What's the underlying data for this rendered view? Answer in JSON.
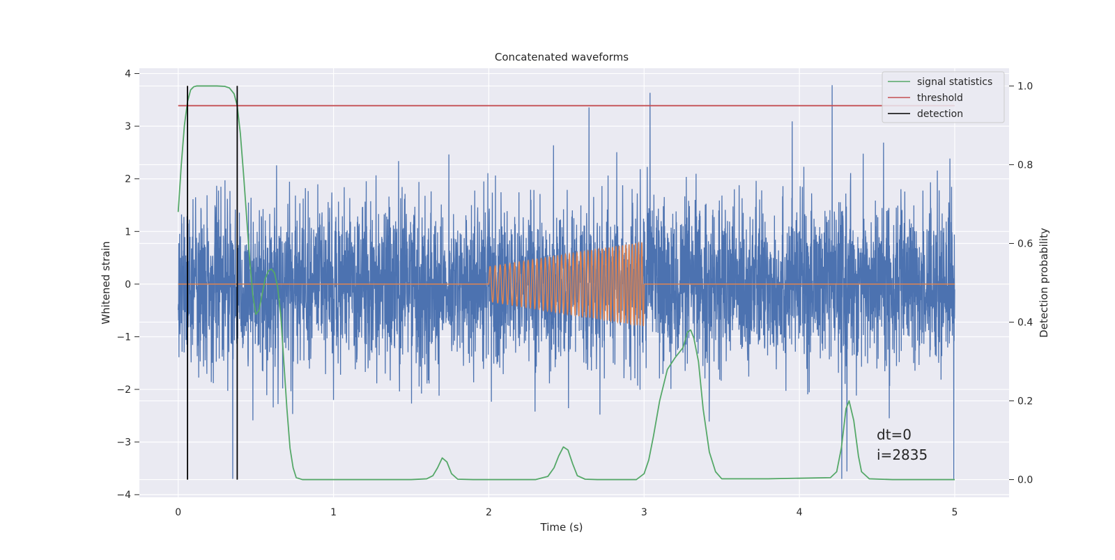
{
  "chart_data": {
    "type": "line",
    "title": "Concatenated waveforms",
    "xlabel": "Time (s)",
    "ylabel": "Whitened strain",
    "y2label": "Detection probability",
    "xlim": [
      -0.25,
      5.35
    ],
    "ylim": [
      -4.05,
      4.1
    ],
    "y2lim": [
      -0.045,
      1.045
    ],
    "xticks": [
      "0",
      "1",
      "2",
      "3",
      "4",
      "5"
    ],
    "yticks": [
      "4",
      "3",
      "2",
      "1",
      "0",
      "−1",
      "−2",
      "−3",
      "−4"
    ],
    "y2ticks": [
      "1.0",
      "0.8",
      "0.6",
      "0.4",
      "0.2",
      "0.0"
    ],
    "grid": true,
    "legend_position": "top-right",
    "legend": [
      "signal statistics",
      "threshold",
      "detection"
    ],
    "annotations": [
      "dt=0",
      "i=2835"
    ],
    "series": [
      {
        "name": "",
        "axis": "left",
        "kind": "noise",
        "color": "#4c72b0",
        "x_range": [
          0,
          5
        ],
        "typical_amplitude": 0.75,
        "max": 3.78,
        "min": -3.7
      },
      {
        "name": "",
        "axis": "left",
        "kind": "chirp",
        "color": "#dd8452",
        "x_range": [
          0,
          5
        ],
        "active_range": [
          2,
          3
        ],
        "amplitude_start": 0.33,
        "amplitude_end": 0.8,
        "freq_start_hz": 30,
        "freq_end_hz": 50
      },
      {
        "name": "signal statistics",
        "axis": "right",
        "color": "#55a868",
        "x": [
          0.0,
          0.02,
          0.04,
          0.06,
          0.08,
          0.1,
          0.12,
          0.15,
          0.2,
          0.25,
          0.3,
          0.33,
          0.36,
          0.38,
          0.4,
          0.42,
          0.44,
          0.46,
          0.48,
          0.5,
          0.52,
          0.54,
          0.56,
          0.58,
          0.6,
          0.62,
          0.64,
          0.66,
          0.68,
          0.7,
          0.72,
          0.74,
          0.76,
          0.8,
          1.0,
          1.5,
          1.6,
          1.64,
          1.67,
          1.7,
          1.73,
          1.76,
          1.8,
          1.9,
          2.3,
          2.38,
          2.42,
          2.45,
          2.48,
          2.51,
          2.54,
          2.57,
          2.62,
          2.7,
          2.95,
          3.0,
          3.03,
          3.06,
          3.1,
          3.15,
          3.2,
          3.25,
          3.28,
          3.3,
          3.32,
          3.35,
          3.38,
          3.42,
          3.46,
          3.5,
          3.8,
          4.2,
          4.24,
          4.27,
          4.3,
          4.32,
          4.35,
          4.38,
          4.4,
          4.45,
          4.6,
          5.0
        ],
        "values": [
          0.68,
          0.8,
          0.9,
          0.96,
          0.99,
          0.998,
          1.0,
          1.0,
          1.0,
          1.0,
          0.999,
          0.995,
          0.98,
          0.95,
          0.88,
          0.78,
          0.67,
          0.56,
          0.47,
          0.42,
          0.43,
          0.47,
          0.51,
          0.53,
          0.535,
          0.525,
          0.49,
          0.42,
          0.3,
          0.18,
          0.08,
          0.03,
          0.005,
          0.0,
          0.0,
          0.0,
          0.002,
          0.01,
          0.03,
          0.055,
          0.045,
          0.015,
          0.001,
          0.0,
          0.0,
          0.008,
          0.03,
          0.06,
          0.083,
          0.075,
          0.04,
          0.01,
          0.001,
          0.0,
          0.0,
          0.015,
          0.05,
          0.11,
          0.2,
          0.28,
          0.31,
          0.335,
          0.375,
          0.38,
          0.36,
          0.3,
          0.18,
          0.07,
          0.02,
          0.002,
          0.002,
          0.005,
          0.02,
          0.08,
          0.18,
          0.2,
          0.15,
          0.06,
          0.02,
          0.002,
          0.0,
          0.0
        ]
      },
      {
        "name": "threshold",
        "axis": "right",
        "color": "#c44e52",
        "x": [
          0,
          5
        ],
        "values": [
          0.95,
          0.95
        ]
      },
      {
        "name": "detection",
        "axis": "right",
        "color": "#000000",
        "kind": "vlines",
        "x": [
          0.06,
          0.38
        ],
        "y_range": [
          0.0,
          1.0
        ]
      }
    ]
  }
}
